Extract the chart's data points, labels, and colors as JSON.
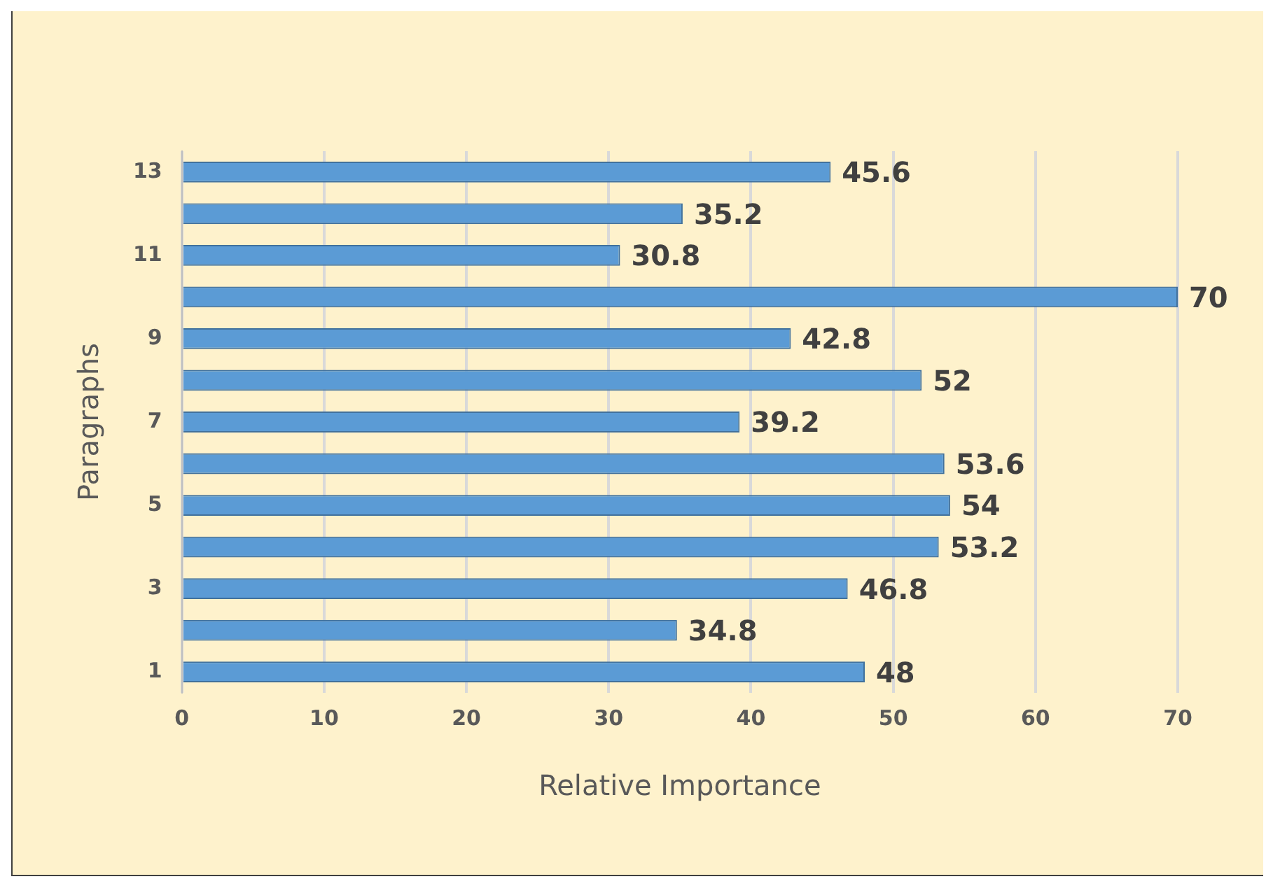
{
  "chart_data": {
    "type": "bar",
    "orientation": "horizontal",
    "xlabel": "Relative Importance",
    "ylabel": "Paragraphs",
    "categories": [
      "13",
      null,
      "11",
      null,
      "9",
      null,
      "7",
      null,
      "5",
      null,
      "3",
      null,
      "1"
    ],
    "values": [
      45.6,
      35.2,
      30.8,
      70,
      42.8,
      52,
      39.2,
      53.6,
      54,
      53.2,
      46.8,
      34.8,
      48
    ],
    "color": "#5b9bd5",
    "xlim": [
      0,
      70
    ],
    "xticks": [
      0,
      10,
      20,
      30,
      40,
      50,
      60,
      70
    ],
    "grid": "x",
    "data_labels": true,
    "legend": false
  }
}
